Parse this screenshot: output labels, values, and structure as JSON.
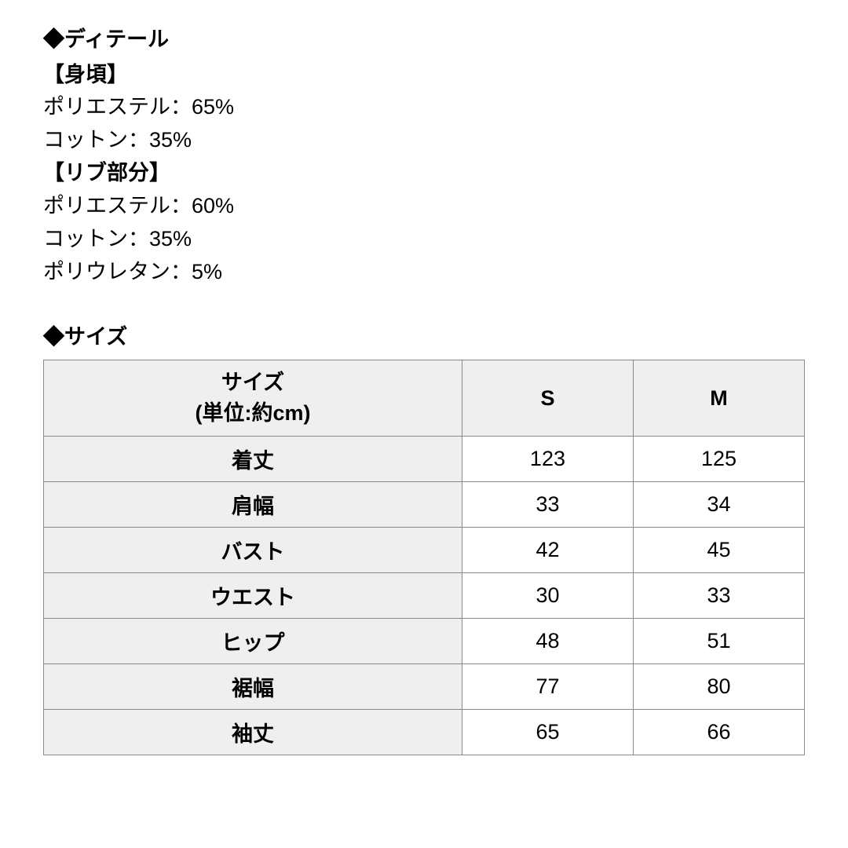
{
  "detail": {
    "heading": "◆ディテール",
    "groups": [
      {
        "title": "【身頃】",
        "lines": [
          "ポリエステル：65%",
          "コットン：35%"
        ]
      },
      {
        "title": "【リブ部分】",
        "lines": [
          "ポリエステル：60%",
          "コットン：35%",
          "ポリウレタン：5%"
        ]
      }
    ]
  },
  "size": {
    "heading": "◆サイズ",
    "table": {
      "header": {
        "label_line1": "サイズ",
        "label_line2": "(単位:約cm)",
        "columns": [
          "S",
          "M"
        ]
      },
      "rows": [
        {
          "label": "着丈",
          "values": [
            "123",
            "125"
          ]
        },
        {
          "label": "肩幅",
          "values": [
            "33",
            "34"
          ]
        },
        {
          "label": "バスト",
          "values": [
            "42",
            "45"
          ]
        },
        {
          "label": "ウエスト",
          "values": [
            "30",
            "33"
          ]
        },
        {
          "label": "ヒップ",
          "values": [
            "48",
            "51"
          ]
        },
        {
          "label": "裾幅",
          "values": [
            "77",
            "80"
          ]
        },
        {
          "label": "袖丈",
          "values": [
            "65",
            "66"
          ]
        }
      ],
      "styling": {
        "border_color": "#898989",
        "header_bg": "#efefef",
        "cell_bg": "#ffffff",
        "font_size_pt": 20,
        "text_color": "#000000"
      }
    }
  },
  "page": {
    "background_color": "#ffffff",
    "text_color": "#000000"
  }
}
